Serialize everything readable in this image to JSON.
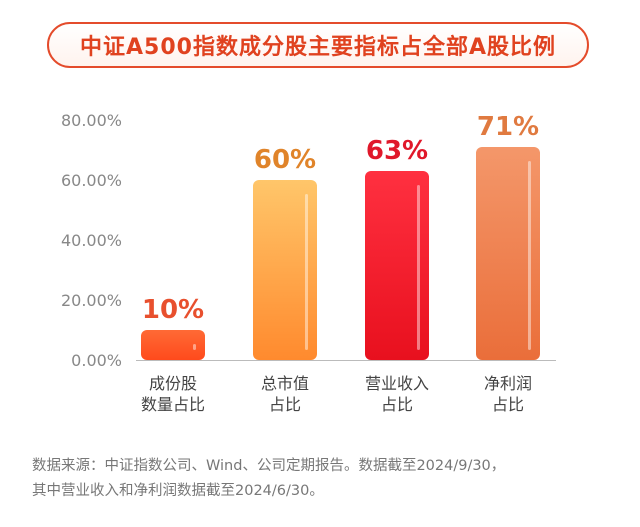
{
  "colors": {
    "accent": "#e44b2b",
    "bars": [
      "#ff5a2a",
      "#ffb347",
      "#f0192a",
      "#f08a55"
    ],
    "labels": [
      "#e8502e",
      "#e0842a",
      "#e0182a",
      "#e07a40"
    ]
  },
  "chart_data": {
    "type": "bar",
    "title": "中证A500指数成分股主要指标占全部A股比例",
    "categories": [
      [
        "成份股",
        "数量占比"
      ],
      [
        "总市值",
        "占比"
      ],
      [
        "营业收入",
        "占比"
      ],
      [
        "净利润",
        "占比"
      ]
    ],
    "values": [
      10,
      60,
      63,
      71
    ],
    "data_labels": [
      "10%",
      "60%",
      "63%",
      "71%"
    ],
    "ylim": [
      0,
      80
    ],
    "yticks": [
      0,
      20,
      40,
      60,
      80
    ],
    "ytick_labels": [
      "0.00%",
      "20.00%",
      "40.00%",
      "60.00%",
      "80.00%"
    ],
    "grid": false
  },
  "footnote": {
    "line1": "数据来源：中证指数公司、Wind、公司定期报告。数据截至2024/9/30，",
    "line2": "其中营业收入和净利润数据截至2024/6/30。"
  }
}
